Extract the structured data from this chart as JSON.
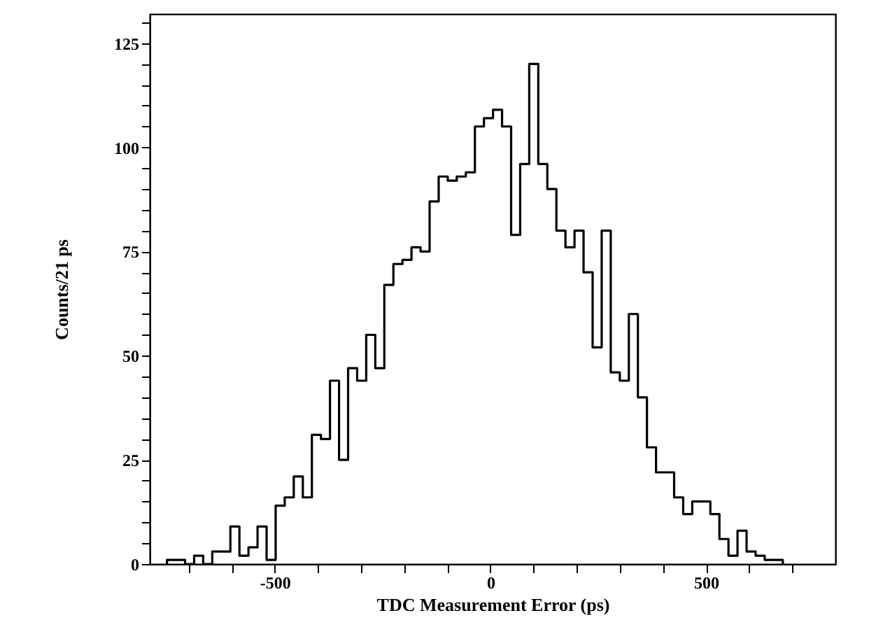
{
  "chart_data": {
    "type": "histogram",
    "xlabel": "TDC Measurement Error (ps)",
    "ylabel": "Counts/21 ps",
    "bins": [
      -750,
      -729,
      -708,
      -687,
      -666,
      -645,
      -624,
      -603,
      -582,
      -561,
      -540,
      -519,
      -498,
      -477,
      -456,
      -435,
      -414,
      -393,
      -372,
      -351,
      -330,
      -309,
      -288,
      -267,
      -246,
      -225,
      -204,
      -183,
      -162,
      -141,
      -120,
      -99,
      -78,
      -57,
      -36,
      -15,
      6,
      27,
      48,
      69,
      90,
      111,
      132,
      153,
      174,
      195,
      216,
      237,
      258,
      279,
      300,
      321,
      342,
      363,
      384,
      405,
      426,
      447,
      468,
      489,
      510,
      531,
      552,
      573,
      594,
      615,
      636,
      657,
      678
    ],
    "values": [
      1,
      1,
      0,
      2,
      0,
      3,
      3,
      9,
      2,
      4,
      9,
      1,
      14,
      16,
      21,
      16,
      31,
      30,
      44,
      25,
      47,
      44,
      55,
      47,
      67,
      72,
      73,
      76,
      75,
      87,
      93,
      92,
      93,
      94,
      105,
      107,
      109,
      105,
      79,
      96,
      120,
      96,
      90,
      80,
      76,
      80,
      70,
      52,
      80,
      46,
      44,
      60,
      40,
      28,
      22,
      22,
      16,
      12,
      15,
      15,
      12,
      6,
      2,
      8,
      3,
      2,
      1,
      1
    ],
    "color": "#000000",
    "xlim": [
      -790,
      800
    ],
    "xticks": [
      {
        "value": -700,
        "label": null
      },
      {
        "value": -600,
        "label": null
      },
      -500,
      {
        "value": -400,
        "label": null
      },
      {
        "value": -300,
        "label": null
      },
      {
        "value": -200,
        "label": null
      },
      {
        "value": -100,
        "label": null
      },
      0,
      {
        "value": 100,
        "label": null
      },
      {
        "value": 200,
        "label": null
      },
      {
        "value": 300,
        "label": null
      },
      {
        "value": 400,
        "label": null
      },
      500,
      {
        "value": 600,
        "label": null
      },
      {
        "value": 700,
        "label": null
      }
    ],
    "ylim": [
      0,
      132
    ],
    "yticks": [
      0,
      {
        "value": 5,
        "label": null
      },
      {
        "value": 10,
        "label": null
      },
      {
        "value": 15,
        "label": null
      },
      {
        "value": 20,
        "label": null
      },
      25,
      {
        "value": 30,
        "label": null
      },
      {
        "value": 35,
        "label": null
      },
      {
        "value": 40,
        "label": null
      },
      {
        "value": 45,
        "label": null
      },
      50,
      {
        "value": 55,
        "label": null
      },
      {
        "value": 60,
        "label": null
      },
      {
        "value": 65,
        "label": null
      },
      {
        "value": 70,
        "label": null
      },
      75,
      {
        "value": 80,
        "label": null
      },
      {
        "value": 85,
        "label": null
      },
      {
        "value": 90,
        "label": null
      },
      {
        "value": 95,
        "label": null
      },
      100,
      {
        "value": 105,
        "label": null
      },
      {
        "value": 110,
        "label": null
      },
      {
        "value": 115,
        "label": null
      },
      {
        "value": 120,
        "label": null
      },
      125,
      {
        "value": 130,
        "label": null
      }
    ],
    "grid": false
  }
}
